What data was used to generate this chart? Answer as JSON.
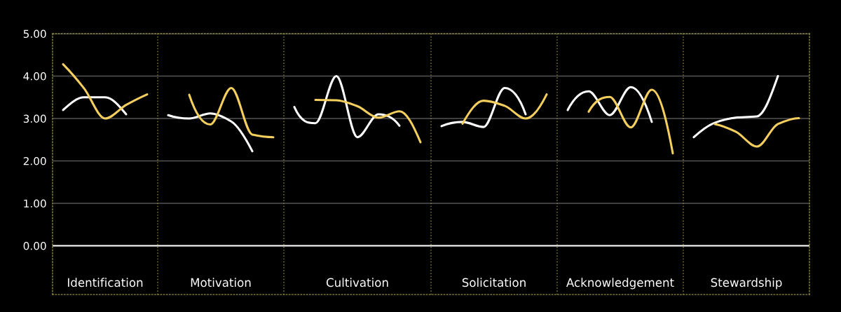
{
  "chart_data": {
    "type": "line",
    "categories": [
      null,
      null,
      null,
      null,
      null,
      null,
      null,
      null,
      null,
      null,
      null,
      null,
      null,
      null,
      null,
      null,
      null,
      null,
      null,
      null,
      null,
      null,
      null,
      null,
      null,
      null,
      null,
      null,
      null,
      null,
      null,
      null,
      null,
      null,
      null,
      null
    ],
    "ylim": [
      -1.15,
      5
    ],
    "yticks": [
      {
        "value": 0,
        "label": "0.00"
      },
      {
        "value": 1,
        "label": "1.00"
      },
      {
        "value": 2,
        "label": "2.00"
      },
      {
        "value": 3,
        "label": "3.00"
      },
      {
        "value": 4,
        "label": "4.00"
      },
      {
        "value": 5,
        "label": "5.00"
      }
    ],
    "grid": "y",
    "tick_labels": "y",
    "ref_lines": [
      {
        "axis": "y",
        "value": 0,
        "color": "#ffffff"
      }
    ],
    "annotations": [
      "Identification",
      "Motivation",
      "Cultivation",
      "Solicitation",
      "Acknowledgement",
      "Stewardship"
    ],
    "series": [
      {
        "color": "#ffffff",
        "values": [
          3.2,
          3.5,
          3.5,
          3.1,
          null,
          3.08,
          3.0,
          3.12,
          2.93,
          2.23,
          null,
          3.27,
          2.89,
          4.0,
          2.56,
          3.1,
          2.83,
          null,
          2.82,
          2.92,
          2.8,
          3.72,
          3.1,
          null,
          3.2,
          3.64,
          3.08,
          3.74,
          2.92,
          null,
          2.56,
          2.9,
          3.02,
          3.05,
          4.0,
          null
        ]
      },
      {
        "color": "#f5cf5e",
        "values": [
          4.28,
          3.71,
          3.0,
          3.32,
          3.57,
          null,
          3.56,
          2.86,
          3.72,
          2.62,
          2.56,
          null,
          3.44,
          3.43,
          3.29,
          3.02,
          3.17,
          2.44,
          null,
          2.88,
          3.42,
          3.3,
          3.0,
          3.57,
          null,
          3.16,
          3.51,
          2.79,
          3.68,
          2.18,
          null,
          2.87,
          2.69,
          2.34,
          2.87,
          3.01
        ]
      }
    ]
  }
}
